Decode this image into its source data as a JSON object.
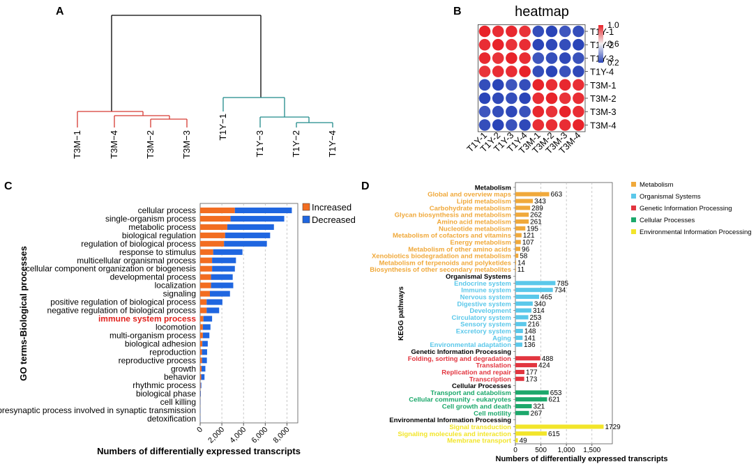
{
  "panel_labels": {
    "a": "A",
    "b": "B",
    "c": "C",
    "d": "D"
  },
  "chart_data": [
    {
      "type": "dendrogram",
      "panel": "A",
      "leaves": [
        "T3M−1",
        "T3M−4",
        "T3M−2",
        "T3M−3",
        "T1Y−1",
        "T1Y−3",
        "T1Y−2",
        "T1Y−4"
      ],
      "clusters": [
        {
          "name": "T3M",
          "color": "#d63a33"
        },
        {
          "name": "T1Y",
          "color": "#1f8a8a"
        }
      ]
    },
    {
      "type": "heatmap",
      "panel": "B",
      "title": "heatmap",
      "rows": [
        "T1Y-1",
        "T1Y-2",
        "T1Y-3",
        "T1Y-4",
        "T3M-1",
        "T3M-2",
        "T3M-3",
        "T3M-4"
      ],
      "cols": [
        "T1Y-1",
        "T1Y-2",
        "T1Y-3",
        "T1Y-4",
        "T3M-1",
        "T3M-2",
        "T3M-3",
        "T3M-4"
      ],
      "scale_ticks": [
        "1.0",
        "0.6",
        "0.2"
      ],
      "scale_range": [
        0.2,
        1.0
      ],
      "values": [
        [
          1.0,
          0.98,
          0.99,
          0.97,
          0.22,
          0.2,
          0.24,
          0.22
        ],
        [
          0.98,
          1.0,
          0.97,
          0.98,
          0.2,
          0.21,
          0.22,
          0.2
        ],
        [
          0.99,
          0.97,
          1.0,
          0.98,
          0.24,
          0.22,
          0.21,
          0.23
        ],
        [
          0.97,
          0.98,
          0.98,
          1.0,
          0.22,
          0.2,
          0.23,
          0.21
        ],
        [
          0.22,
          0.2,
          0.24,
          0.22,
          1.0,
          0.98,
          0.99,
          0.98
        ],
        [
          0.2,
          0.21,
          0.22,
          0.2,
          0.98,
          1.0,
          0.97,
          0.98
        ],
        [
          0.24,
          0.22,
          0.21,
          0.23,
          0.99,
          0.97,
          1.0,
          0.98
        ],
        [
          0.22,
          0.2,
          0.23,
          0.21,
          0.98,
          0.98,
          0.98,
          1.0
        ]
      ],
      "colors": {
        "high": "#e8232a",
        "mid": "#f2f2f2",
        "low": "#2a45b8"
      }
    },
    {
      "type": "bar",
      "orientation": "horizontal",
      "stacked": true,
      "panel": "C",
      "ylabel": "GO terms-Biological processes",
      "xlabel": "Numbers of differentially expressed transcripts",
      "xlim": [
        0,
        9000
      ],
      "xticks": [
        0,
        2000,
        4000,
        6000,
        8000
      ],
      "xtick_labels": [
        "0",
        "2,000",
        "4,000",
        "6,000",
        "8,000"
      ],
      "legend": [
        {
          "name": "Increased",
          "color": "#f26d21"
        },
        {
          "name": "Decreased",
          "color": "#1f66e0"
        }
      ],
      "highlight": {
        "label": "immune system process",
        "color": "#e0231e"
      },
      "categories": [
        "cellular process",
        "single-organism process",
        "metabolic process",
        "biological regulation",
        "regulation of biological process",
        "response to stimulus",
        "multicellular organismal process",
        "cellular component organization or biogenesis",
        "developmental process",
        "localization",
        "signaling",
        "positive regulation of biological process",
        "negative regulation of biological process",
        "immune system process",
        "locomotion",
        "multi-organism process",
        "biological adhesion",
        "reproduction",
        "reproductive process",
        "growth",
        "behavior",
        "rhythmic process",
        "biological phase",
        "cell killing",
        "presynaptic process involved in synaptic transmission",
        "detoxification"
      ],
      "series": [
        {
          "name": "Increased",
          "values": [
            3200,
            2800,
            2500,
            2300,
            2200,
            1200,
            1100,
            1100,
            1000,
            1000,
            900,
            600,
            600,
            300,
            250,
            250,
            200,
            170,
            170,
            130,
            100,
            40,
            20,
            15,
            10,
            10
          ]
        },
        {
          "name": "Decreased",
          "values": [
            5250,
            4950,
            4300,
            4150,
            3950,
            2700,
            2200,
            2100,
            2000,
            2050,
            1850,
            1450,
            1150,
            800,
            700,
            600,
            500,
            470,
            450,
            350,
            300,
            70,
            40,
            20,
            20,
            20
          ]
        }
      ]
    },
    {
      "type": "bar",
      "orientation": "horizontal",
      "panel": "D",
      "ylabel": "KEGG pathways",
      "xlabel": "Numbers of differentially expressed transcripts",
      "xlim": [
        0,
        1900
      ],
      "xticks": [
        0,
        500,
        1000,
        1500
      ],
      "xtick_labels": [
        "0",
        "500",
        "1,000",
        "1,500"
      ],
      "groups": [
        {
          "name": "Metabolism",
          "color": "#f0a93b",
          "items": [
            {
              "label": "Global and overview maps",
              "value": 663
            },
            {
              "label": "Lipid metabolism",
              "value": 343
            },
            {
              "label": "Carbohydrate metabolism",
              "value": 289
            },
            {
              "label": "Glycan biosynthesis and metabolism",
              "value": 262
            },
            {
              "label": "Amino acid metabolism",
              "value": 261
            },
            {
              "label": "Nucleotide metabolism",
              "value": 195
            },
            {
              "label": "Metabolism of cofactors and vitamins",
              "value": 121
            },
            {
              "label": "Energy metabolism",
              "value": 107
            },
            {
              "label": "Metabolism of other amino acids",
              "value": 96
            },
            {
              "label": "Xenobiotics biodegradation and metabolism",
              "value": 58
            },
            {
              "label": "Metabolism of terpenoids and polyketides",
              "value": 14
            },
            {
              "label": "Biosynthesis of other secondary metabolites",
              "value": 11
            }
          ]
        },
        {
          "name": "Organismal Systems",
          "color": "#5bc8ea",
          "items": [
            {
              "label": "Endocrine system",
              "value": 785
            },
            {
              "label": "Immune system",
              "value": 734
            },
            {
              "label": "Nervous system",
              "value": 465
            },
            {
              "label": "Digestive system",
              "value": 340
            },
            {
              "label": "Development",
              "value": 314
            },
            {
              "label": "Circulatory system",
              "value": 253
            },
            {
              "label": "Sensory system",
              "value": 216
            },
            {
              "label": "Excretory system",
              "value": 148
            },
            {
              "label": "Aging",
              "value": 141
            },
            {
              "label": "Environmental adaptation",
              "value": 136
            }
          ]
        },
        {
          "name": "Genetic Information Processing",
          "color": "#e2353f",
          "items": [
            {
              "label": "Folding, sorting and degradation",
              "value": 488
            },
            {
              "label": "Translation",
              "value": 424
            },
            {
              "label": "Replication and repair",
              "value": 177
            },
            {
              "label": "Transcription",
              "value": 173
            }
          ]
        },
        {
          "name": "Cellular Processes",
          "color": "#1ca86b",
          "items": [
            {
              "label": "Transport and catabolism",
              "value": 653
            },
            {
              "label": "Cellular community - eukaryotes",
              "value": 621
            },
            {
              "label": "Cell growth and death",
              "value": 321
            },
            {
              "label": "Cell motility",
              "value": 267
            }
          ]
        },
        {
          "name": "Environmental Information Processing",
          "color": "#f2e52a",
          "items": [
            {
              "label": "Signal transduction",
              "value": 1729
            },
            {
              "label": "Signaling molecules and interaction",
              "value": 615
            },
            {
              "label": "Membrane transport",
              "value": 49
            }
          ]
        }
      ]
    }
  ]
}
